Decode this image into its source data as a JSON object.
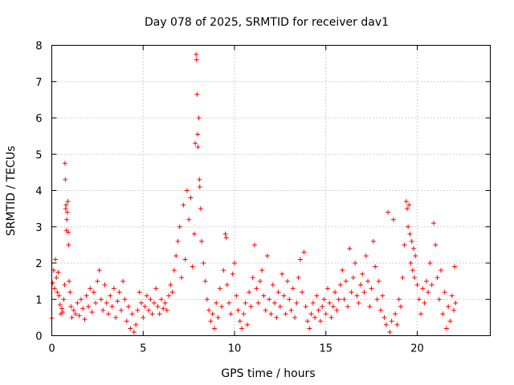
{
  "chart_data": {
    "type": "scatter",
    "title": "Day 078 of 2025, SRMTID for receiver dav1",
    "xlabel": "GPS time / hours",
    "ylabel": "SRMTID / TECUs",
    "xlim": [
      0,
      24
    ],
    "ylim": [
      0,
      8
    ],
    "xticks": [
      0,
      5,
      10,
      15,
      20
    ],
    "yticks": [
      0,
      1,
      2,
      3,
      4,
      5,
      6,
      7,
      8
    ],
    "grid": true,
    "marker": "+",
    "color": "#ff0000",
    "series": [
      {
        "name": "SRMTID",
        "points": [
          [
            0.0,
            0.48
          ],
          [
            0.05,
            1.45
          ],
          [
            0.1,
            1.8
          ],
          [
            0.15,
            1.3
          ],
          [
            0.2,
            2.1
          ],
          [
            0.25,
            1.6
          ],
          [
            0.3,
            1.2
          ],
          [
            0.35,
            1.75
          ],
          [
            0.4,
            1.1
          ],
          [
            0.45,
            0.85
          ],
          [
            0.5,
            0.6
          ],
          [
            0.55,
            0.75
          ],
          [
            0.6,
            0.65
          ],
          [
            0.65,
            1.0
          ],
          [
            0.7,
            1.4
          ],
          [
            0.72,
            4.75
          ],
          [
            0.74,
            4.3
          ],
          [
            0.76,
            3.5
          ],
          [
            0.78,
            3.6
          ],
          [
            0.8,
            2.9
          ],
          [
            0.82,
            3.2
          ],
          [
            0.85,
            3.4
          ],
          [
            0.88,
            3.7
          ],
          [
            0.9,
            2.85
          ],
          [
            0.92,
            2.5
          ],
          [
            0.95,
            1.5
          ],
          [
            1.0,
            1.2
          ],
          [
            1.05,
            0.8
          ],
          [
            1.1,
            0.5
          ],
          [
            1.2,
            0.7
          ],
          [
            1.3,
            0.6
          ],
          [
            1.4,
            0.9
          ],
          [
            1.5,
            0.55
          ],
          [
            1.6,
            1.0
          ],
          [
            1.7,
            0.75
          ],
          [
            1.8,
            0.45
          ],
          [
            1.9,
            1.1
          ],
          [
            2.0,
            0.8
          ],
          [
            2.1,
            1.3
          ],
          [
            2.2,
            0.65
          ],
          [
            2.3,
            1.2
          ],
          [
            2.4,
            0.9
          ],
          [
            2.5,
            1.5
          ],
          [
            2.6,
            1.8
          ],
          [
            2.7,
            1.0
          ],
          [
            2.8,
            0.7
          ],
          [
            2.9,
            1.4
          ],
          [
            3.0,
            0.9
          ],
          [
            3.1,
            0.6
          ],
          [
            3.2,
            1.1
          ],
          [
            3.3,
            0.8
          ],
          [
            3.4,
            1.3
          ],
          [
            3.5,
            0.5
          ],
          [
            3.6,
            0.95
          ],
          [
            3.7,
            1.2
          ],
          [
            3.8,
            0.7
          ],
          [
            3.9,
            1.5
          ],
          [
            4.0,
            1.0
          ],
          [
            4.1,
            0.4
          ],
          [
            4.2,
            0.8
          ],
          [
            4.3,
            0.2
          ],
          [
            4.4,
            0.6
          ],
          [
            4.5,
            0.1
          ],
          [
            4.6,
            0.3
          ],
          [
            4.7,
            0.7
          ],
          [
            4.8,
            1.2
          ],
          [
            4.9,
            0.9
          ],
          [
            5.0,
            0.5
          ],
          [
            5.1,
            0.8
          ],
          [
            5.2,
            1.1
          ],
          [
            5.3,
            0.7
          ],
          [
            5.4,
            1.0
          ],
          [
            5.5,
            0.6
          ],
          [
            5.6,
            0.9
          ],
          [
            5.7,
            1.3
          ],
          [
            5.8,
            0.8
          ],
          [
            5.9,
            0.6
          ],
          [
            6.0,
            1.0
          ],
          [
            6.1,
            0.75
          ],
          [
            6.2,
            0.9
          ],
          [
            6.3,
            0.7
          ],
          [
            6.4,
            1.1
          ],
          [
            6.5,
            1.4
          ],
          [
            6.6,
            1.2
          ],
          [
            6.7,
            1.8
          ],
          [
            6.8,
            2.2
          ],
          [
            6.9,
            2.6
          ],
          [
            7.0,
            3.0
          ],
          [
            7.1,
            1.6
          ],
          [
            7.2,
            3.6
          ],
          [
            7.3,
            2.1
          ],
          [
            7.4,
            4.0
          ],
          [
            7.5,
            3.2
          ],
          [
            7.6,
            3.8
          ],
          [
            7.7,
            1.9
          ],
          [
            7.8,
            2.8
          ],
          [
            7.85,
            5.3
          ],
          [
            7.9,
            7.75
          ],
          [
            7.92,
            7.6
          ],
          [
            7.95,
            6.65
          ],
          [
            7.98,
            5.55
          ],
          [
            8.0,
            5.2
          ],
          [
            8.05,
            6.0
          ],
          [
            8.08,
            4.3
          ],
          [
            8.1,
            4.1
          ],
          [
            8.15,
            3.5
          ],
          [
            8.2,
            2.6
          ],
          [
            8.3,
            2.0
          ],
          [
            8.4,
            1.5
          ],
          [
            8.5,
            1.0
          ],
          [
            8.6,
            0.7
          ],
          [
            8.7,
            0.4
          ],
          [
            8.8,
            0.6
          ],
          [
            8.9,
            0.2
          ],
          [
            9.0,
            0.9
          ],
          [
            9.1,
            0.5
          ],
          [
            9.2,
            1.3
          ],
          [
            9.3,
            0.8
          ],
          [
            9.4,
            1.8
          ],
          [
            9.5,
            2.8
          ],
          [
            9.55,
            2.7
          ],
          [
            9.6,
            1.4
          ],
          [
            9.7,
            0.9
          ],
          [
            9.8,
            0.6
          ],
          [
            9.9,
            1.7
          ],
          [
            10.0,
            2.0
          ],
          [
            10.1,
            1.1
          ],
          [
            10.2,
            0.7
          ],
          [
            10.3,
            0.4
          ],
          [
            10.4,
            0.2
          ],
          [
            10.5,
            0.6
          ],
          [
            10.6,
            0.9
          ],
          [
            10.7,
            0.3
          ],
          [
            10.8,
            1.2
          ],
          [
            10.9,
            0.8
          ],
          [
            11.0,
            1.6
          ],
          [
            11.1,
            2.5
          ],
          [
            11.2,
            1.3
          ],
          [
            11.3,
            0.9
          ],
          [
            11.4,
            1.5
          ],
          [
            11.5,
            1.8
          ],
          [
            11.6,
            1.1
          ],
          [
            11.7,
            0.7
          ],
          [
            11.8,
            2.2
          ],
          [
            11.9,
            1.0
          ],
          [
            12.0,
            0.6
          ],
          [
            12.1,
            1.4
          ],
          [
            12.2,
            0.9
          ],
          [
            12.3,
            0.5
          ],
          [
            12.4,
            1.2
          ],
          [
            12.5,
            0.8
          ],
          [
            12.6,
            1.7
          ],
          [
            12.7,
            1.1
          ],
          [
            12.8,
            0.6
          ],
          [
            12.9,
            1.5
          ],
          [
            13.0,
            1.0
          ],
          [
            13.1,
            0.7
          ],
          [
            13.2,
            1.3
          ],
          [
            13.3,
            0.5
          ],
          [
            13.4,
            0.9
          ],
          [
            13.5,
            1.6
          ],
          [
            13.6,
            2.1
          ],
          [
            13.7,
            1.2
          ],
          [
            13.8,
            2.3
          ],
          [
            13.9,
            0.8
          ],
          [
            14.0,
            0.4
          ],
          [
            14.1,
            0.2
          ],
          [
            14.2,
            0.6
          ],
          [
            14.3,
            0.9
          ],
          [
            14.4,
            0.5
          ],
          [
            14.5,
            1.1
          ],
          [
            14.6,
            0.7
          ],
          [
            14.7,
            0.4
          ],
          [
            14.8,
            0.8
          ],
          [
            14.9,
            1.0
          ],
          [
            15.0,
            0.6
          ],
          [
            15.1,
            1.3
          ],
          [
            15.2,
            0.9
          ],
          [
            15.3,
            0.5
          ],
          [
            15.4,
            0.8
          ],
          [
            15.5,
            1.2
          ],
          [
            15.6,
            0.7
          ],
          [
            15.7,
            1.0
          ],
          [
            15.8,
            1.4
          ],
          [
            15.9,
            1.8
          ],
          [
            16.0,
            1.0
          ],
          [
            16.1,
            1.5
          ],
          [
            16.2,
            0.8
          ],
          [
            16.3,
            2.4
          ],
          [
            16.4,
            1.2
          ],
          [
            16.5,
            1.6
          ],
          [
            16.6,
            2.0
          ],
          [
            16.7,
            1.1
          ],
          [
            16.8,
            0.9
          ],
          [
            16.9,
            1.4
          ],
          [
            17.0,
            1.7
          ],
          [
            17.1,
            1.2
          ],
          [
            17.2,
            2.2
          ],
          [
            17.3,
            1.5
          ],
          [
            17.4,
            0.8
          ],
          [
            17.5,
            1.3
          ],
          [
            17.6,
            2.6
          ],
          [
            17.7,
            1.9
          ],
          [
            17.8,
            1.0
          ],
          [
            17.9,
            1.5
          ],
          [
            18.0,
            0.7
          ],
          [
            18.1,
            1.1
          ],
          [
            18.2,
            0.5
          ],
          [
            18.3,
            0.3
          ],
          [
            18.4,
            3.4
          ],
          [
            18.5,
            0.1
          ],
          [
            18.6,
            0.4
          ],
          [
            18.7,
            3.2
          ],
          [
            18.8,
            0.6
          ],
          [
            18.9,
            0.3
          ],
          [
            19.0,
            1.0
          ],
          [
            19.1,
            0.8
          ],
          [
            19.2,
            1.6
          ],
          [
            19.3,
            2.5
          ],
          [
            19.4,
            3.7
          ],
          [
            19.45,
            3.5
          ],
          [
            19.5,
            3.0
          ],
          [
            19.55,
            3.6
          ],
          [
            19.6,
            2.8
          ],
          [
            19.65,
            2.0
          ],
          [
            19.7,
            2.6
          ],
          [
            19.75,
            1.8
          ],
          [
            19.8,
            2.4
          ],
          [
            19.85,
            1.6
          ],
          [
            19.9,
            2.2
          ],
          [
            20.0,
            1.4
          ],
          [
            20.1,
            1.0
          ],
          [
            20.2,
            0.6
          ],
          [
            20.3,
            1.3
          ],
          [
            20.4,
            0.9
          ],
          [
            20.5,
            1.5
          ],
          [
            20.6,
            1.2
          ],
          [
            20.7,
            2.0
          ],
          [
            20.8,
            1.4
          ],
          [
            20.9,
            3.1
          ],
          [
            21.0,
            2.5
          ],
          [
            21.1,
            1.6
          ],
          [
            21.2,
            1.0
          ],
          [
            21.3,
            1.8
          ],
          [
            21.4,
            0.6
          ],
          [
            21.5,
            1.2
          ],
          [
            21.6,
            0.2
          ],
          [
            21.7,
            0.8
          ],
          [
            21.8,
            0.4
          ],
          [
            21.9,
            1.1
          ],
          [
            22.0,
            0.7
          ],
          [
            22.05,
            1.9
          ],
          [
            22.1,
            0.9
          ]
        ]
      }
    ]
  }
}
